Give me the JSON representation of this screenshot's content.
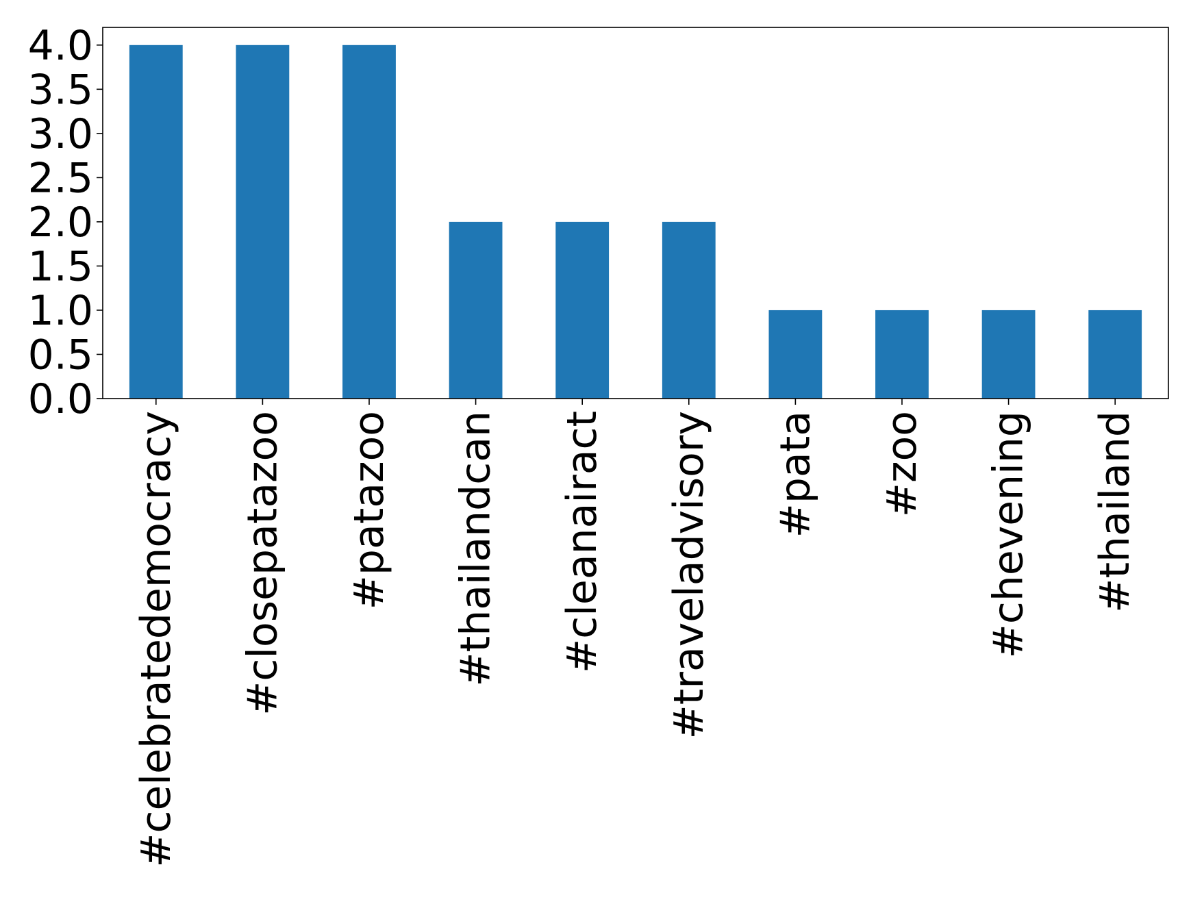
{
  "chart_data": {
    "type": "bar",
    "title": "",
    "xlabel": "",
    "ylabel": "",
    "categories": [
      "#celebratedemocracy",
      "#closepatazoo",
      "#patazoo",
      "#thailandcan",
      "#cleanairact",
      "#traveladvisory",
      "#pata",
      "#zoo",
      "#chevening",
      "#thailand"
    ],
    "values": [
      4,
      4,
      4,
      2,
      2,
      2,
      1,
      1,
      1,
      1
    ],
    "ylim": [
      0,
      4.2
    ],
    "yticks": [
      0.0,
      0.5,
      1.0,
      1.5,
      2.0,
      2.5,
      3.0,
      3.5,
      4.0
    ],
    "ytick_labels": [
      "0.0",
      "0.5",
      "1.0",
      "1.5",
      "2.0",
      "2.5",
      "3.0",
      "3.5",
      "4.0"
    ],
    "bar_color": "#1f77b4",
    "grid": false,
    "legend": "none"
  }
}
